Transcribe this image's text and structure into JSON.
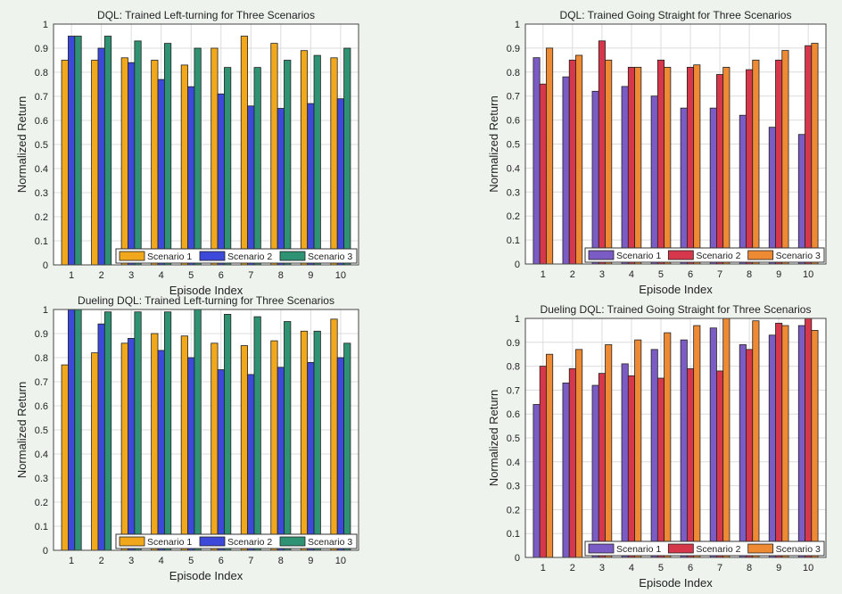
{
  "figure": {
    "ylabel": "Normalized Return",
    "xlabel": "Episode Index"
  },
  "chart_data": [
    {
      "type": "bar",
      "title": "DQL: Trained Left-turning for Three Scenarios",
      "xlabel": "Episode Index",
      "ylabel": "Normalized Return",
      "ylim": [
        0,
        1
      ],
      "yticks": [
        "0",
        "0.1",
        "0.2",
        "0.3",
        "0.4",
        "0.5",
        "0.6",
        "0.7",
        "0.8",
        "0.9",
        "1"
      ],
      "categories": [
        "1",
        "2",
        "3",
        "4",
        "5",
        "6",
        "7",
        "8",
        "9",
        "10"
      ],
      "grid": true,
      "legend_placement": "bottom-right",
      "series": [
        {
          "name": "Scenario 1",
          "color": "#f2a81d",
          "values": [
            0.85,
            0.85,
            0.86,
            0.85,
            0.83,
            0.9,
            0.95,
            0.92,
            0.89,
            0.86
          ]
        },
        {
          "name": "Scenario 2",
          "color": "#3d49d8",
          "values": [
            0.95,
            0.9,
            0.84,
            0.77,
            0.74,
            0.71,
            0.66,
            0.65,
            0.67,
            0.69
          ]
        },
        {
          "name": "Scenario 3",
          "color": "#2f9273",
          "values": [
            0.95,
            0.95,
            0.93,
            0.92,
            0.9,
            0.82,
            0.82,
            0.85,
            0.87,
            0.9
          ]
        }
      ]
    },
    {
      "type": "bar",
      "title": "DQL: Trained Going Straight for Three Scenarios",
      "xlabel": "Episode Index",
      "ylabel": "Normalized Return",
      "ylim": [
        0,
        1
      ],
      "yticks": [
        "0",
        "0.1",
        "0.2",
        "0.3",
        "0.4",
        "0.5",
        "0.6",
        "0.7",
        "0.8",
        "0.9",
        "1"
      ],
      "categories": [
        "1",
        "2",
        "3",
        "4",
        "5",
        "6",
        "7",
        "8",
        "9",
        "10"
      ],
      "grid": true,
      "legend_placement": "bottom-right",
      "series": [
        {
          "name": "Scenario 1",
          "color": "#7b5cc4",
          "values": [
            0.86,
            0.78,
            0.72,
            0.74,
            0.7,
            0.65,
            0.65,
            0.62,
            0.57,
            0.54
          ]
        },
        {
          "name": "Scenario 2",
          "color": "#d7374b",
          "values": [
            0.75,
            0.85,
            0.93,
            0.82,
            0.85,
            0.82,
            0.79,
            0.81,
            0.85,
            0.91
          ]
        },
        {
          "name": "Scenario 3",
          "color": "#ee8a34",
          "values": [
            0.9,
            0.87,
            0.85,
            0.82,
            0.82,
            0.83,
            0.82,
            0.85,
            0.89,
            0.92
          ]
        }
      ]
    },
    {
      "type": "bar",
      "title": "Dueling DQL: Trained Left-turning for Three Scenarios",
      "xlabel": "Episode Index",
      "ylabel": "Normalized Return",
      "ylim": [
        0,
        1
      ],
      "yticks": [
        "0",
        "0.1",
        "0.2",
        "0.3",
        "0.4",
        "0.5",
        "0.6",
        "0.7",
        "0.8",
        "0.9",
        "1"
      ],
      "categories": [
        "1",
        "2",
        "3",
        "4",
        "5",
        "6",
        "7",
        "8",
        "9",
        "10"
      ],
      "grid": true,
      "legend_placement": "bottom-right",
      "series": [
        {
          "name": "Scenario 1",
          "color": "#f2a81d",
          "values": [
            0.77,
            0.82,
            0.86,
            0.9,
            0.89,
            0.86,
            0.85,
            0.87,
            0.91,
            0.96
          ]
        },
        {
          "name": "Scenario 2",
          "color": "#3d49d8",
          "values": [
            1.0,
            0.94,
            0.88,
            0.83,
            0.8,
            0.75,
            0.73,
            0.76,
            0.78,
            0.8
          ]
        },
        {
          "name": "Scenario 3",
          "color": "#2f9273",
          "values": [
            1.0,
            0.99,
            0.99,
            0.99,
            1.0,
            0.98,
            0.97,
            0.95,
            0.91,
            0.86
          ]
        }
      ]
    },
    {
      "type": "bar",
      "title": "Dueling DQL: Trained Going Straight for Three Scenarios",
      "xlabel": "Episode Index",
      "ylabel": "Normalized Return",
      "ylim": [
        0,
        1
      ],
      "yticks": [
        "0",
        "0.1",
        "0.2",
        "0.3",
        "0.4",
        "0.5",
        "0.6",
        "0.7",
        "0.8",
        "0.9",
        "1"
      ],
      "categories": [
        "1",
        "2",
        "3",
        "4",
        "5",
        "6",
        "7",
        "8",
        "9",
        "10"
      ],
      "grid": true,
      "legend_placement": "bottom-right",
      "series": [
        {
          "name": "Scenario 1",
          "color": "#7b5cc4",
          "values": [
            0.64,
            0.73,
            0.72,
            0.81,
            0.87,
            0.91,
            0.96,
            0.89,
            0.93,
            0.97
          ]
        },
        {
          "name": "Scenario 2",
          "color": "#d7374b",
          "values": [
            0.8,
            0.79,
            0.77,
            0.76,
            0.75,
            0.79,
            0.78,
            0.87,
            0.98,
            1.0
          ]
        },
        {
          "name": "Scenario 3",
          "color": "#ee8a34",
          "values": [
            0.85,
            0.87,
            0.89,
            0.91,
            0.94,
            0.97,
            1.0,
            0.99,
            0.97,
            0.95
          ]
        }
      ]
    }
  ]
}
